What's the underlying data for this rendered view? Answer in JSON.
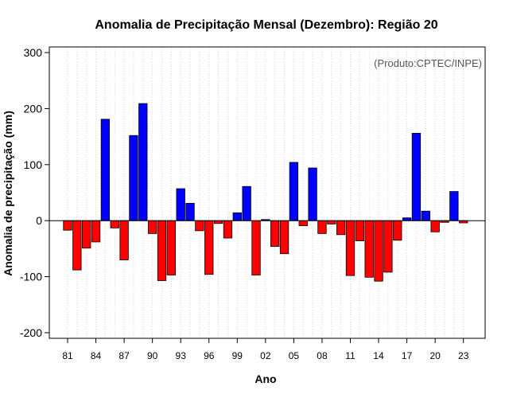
{
  "chart_data": {
    "type": "bar",
    "title": "Anomalia de Precipitação Mensal (Dezembro): Região 20",
    "xlabel": "Ano",
    "ylabel": "Anomalia de precipitação (mm)",
    "credit": "(Produto:CPTEC/INPE)",
    "ylim": [
      -210,
      310
    ],
    "yticks": [
      -200,
      -100,
      0,
      100,
      200,
      300
    ],
    "xtick_labels": [
      "81",
      "84",
      "87",
      "90",
      "93",
      "96",
      "99",
      "02",
      "05",
      "08",
      "11",
      "14",
      "17",
      "20",
      "23"
    ],
    "grid": "vertical dotted",
    "colors": {
      "positive": "#0000ff",
      "negative": "#ff0000",
      "grid": "#d3d3d3"
    },
    "categories": [
      "1981",
      "1982",
      "1983",
      "1984",
      "1985",
      "1986",
      "1987",
      "1988",
      "1989",
      "1990",
      "1991",
      "1992",
      "1993",
      "1994",
      "1995",
      "1996",
      "1997",
      "1998",
      "1999",
      "2000",
      "2001",
      "2002",
      "2003",
      "2004",
      "2005",
      "2006",
      "2007",
      "2008",
      "2009",
      "2010",
      "2011",
      "2012",
      "2013",
      "2014",
      "2015",
      "2016",
      "2017",
      "2018",
      "2019",
      "2020",
      "2021",
      "2022",
      "2023"
    ],
    "values": [
      -17,
      -88,
      -49,
      -38,
      181,
      -13,
      -70,
      152,
      209,
      -23,
      -107,
      -97,
      57,
      31,
      -18,
      -96,
      -5,
      -31,
      14,
      61,
      -97,
      2,
      -46,
      -59,
      104,
      -9,
      94,
      -23,
      -6,
      -25,
      -98,
      -36,
      -101,
      -108,
      -92,
      -35,
      5,
      156,
      17,
      -20,
      -3,
      52,
      -4
    ]
  }
}
